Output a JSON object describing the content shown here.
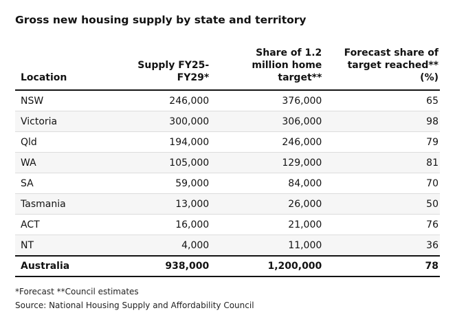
{
  "title": "Gross new housing supply by state and territory",
  "chart_data": {
    "type": "table",
    "columns": [
      "Location",
      "Supply FY25-FY29*",
      "Share of 1.2 million home target**",
      "Forecast share of target reached** (%)"
    ],
    "header_lines": [
      [
        "Location"
      ],
      [
        "Supply FY25-",
        "FY29*"
      ],
      [
        "Share of 1.2",
        "million home",
        "target**"
      ],
      [
        "Forecast share of",
        "target reached**",
        "(%)"
      ]
    ],
    "rows": [
      [
        "NSW",
        "246,000",
        "376,000",
        "65"
      ],
      [
        "Victoria",
        "300,000",
        "306,000",
        "98"
      ],
      [
        "Qld",
        "194,000",
        "246,000",
        "79"
      ],
      [
        "WA",
        "105,000",
        "129,000",
        "81"
      ],
      [
        "SA",
        "59,000",
        "84,000",
        "70"
      ],
      [
        "Tasmania",
        "13,000",
        "26,000",
        "50"
      ],
      [
        "ACT",
        "16,000",
        "21,000",
        "76"
      ],
      [
        "NT",
        "4,000",
        "11,000",
        "36"
      ]
    ],
    "total_row": [
      "Australia",
      "938,000",
      "1,200,000",
      "78"
    ]
  },
  "footnotes": {
    "forecast_note": "*Forecast **Council estimates",
    "source": "Source: National Housing Supply and Affordability Council"
  },
  "colors": {
    "text": "#121212",
    "rule": "#121212",
    "row_divider": "#dcdcdc",
    "alt_row_bg": "#f6f6f6"
  }
}
